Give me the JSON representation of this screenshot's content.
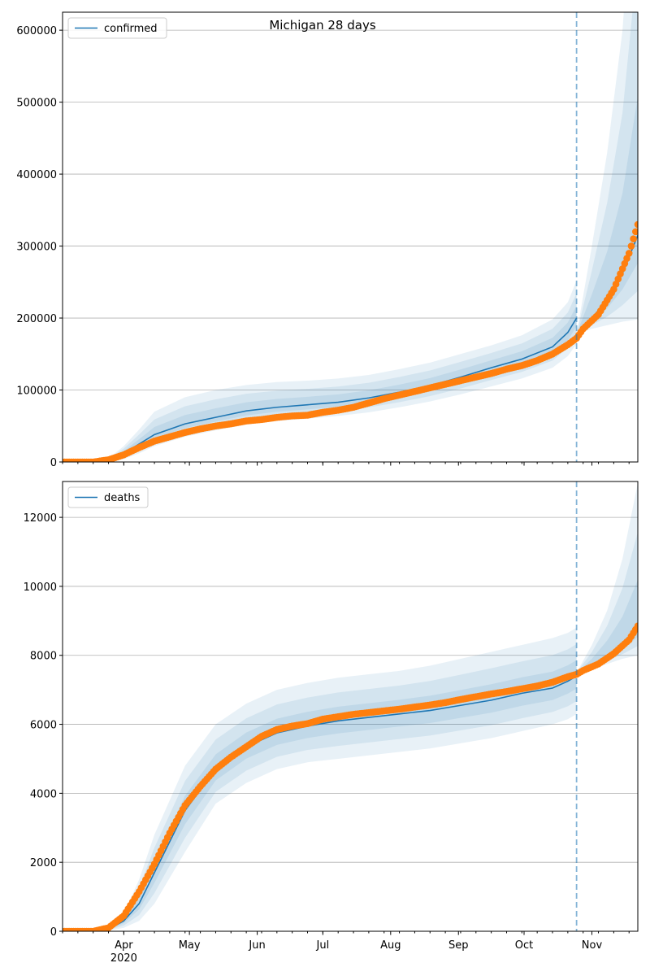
{
  "chart_data": [
    {
      "type": "line",
      "title": "Michigan 28 days",
      "legend": {
        "label": "confirmed",
        "placement": "top-left"
      },
      "xlim": [
        "2020-03-04",
        "2020-11-22"
      ],
      "ylim": [
        0,
        625000
      ],
      "yticks": [
        0,
        100000,
        200000,
        300000,
        400000,
        500000,
        600000
      ],
      "ytick_labels": [
        "0",
        "100000",
        "200000",
        "300000",
        "400000",
        "500000",
        "600000"
      ],
      "grid": true,
      "forecast_start": "2020-10-25",
      "fit": {
        "x": [
          "2020-03-04",
          "2020-03-18",
          "2020-03-25",
          "2020-04-01",
          "2020-04-08",
          "2020-04-15",
          "2020-04-29",
          "2020-05-13",
          "2020-05-27",
          "2020-06-10",
          "2020-06-24",
          "2020-07-08",
          "2020-07-22",
          "2020-08-05",
          "2020-08-19",
          "2020-09-02",
          "2020-09-16",
          "2020-09-30",
          "2020-10-14",
          "2020-10-21",
          "2020-10-25"
        ],
        "median": [
          0,
          0,
          2000,
          12000,
          25000,
          38000,
          53000,
          62000,
          71000,
          76000,
          79500,
          83000,
          89000,
          97000,
          106000,
          118000,
          131000,
          143000,
          160000,
          180000,
          200000
        ],
        "lower": [
          0,
          0,
          0,
          4000,
          12000,
          22000,
          35000,
          44000,
          52000,
          57000,
          60000,
          64000,
          69000,
          76000,
          84000,
          94000,
          105000,
          116000,
          131000,
          147000,
          164000
        ],
        "upper": [
          0,
          0,
          5000,
          22000,
          45000,
          70000,
          90000,
          100000,
          107000,
          111000,
          113000,
          116000,
          121000,
          129000,
          138000,
          150000,
          162000,
          176000,
          198000,
          222000,
          252000
        ]
      },
      "forecast": {
        "x": [
          "2020-10-25",
          "2020-11-01",
          "2020-11-08",
          "2020-11-15",
          "2020-11-22"
        ],
        "median": [
          178000,
          200000,
          225000,
          262000,
          315000
        ],
        "lower": [
          178000,
          185000,
          190000,
          195000,
          198000
        ],
        "upper": [
          178000,
          300000,
          430000,
          600000,
          900000
        ]
      },
      "band_levels": [
        1.0,
        0.66,
        0.33
      ],
      "observed": {
        "x": [
          "2020-03-04",
          "2020-03-18",
          "2020-03-25",
          "2020-04-01",
          "2020-04-08",
          "2020-04-15",
          "2020-04-22",
          "2020-04-29",
          "2020-05-06",
          "2020-05-13",
          "2020-05-20",
          "2020-05-27",
          "2020-06-03",
          "2020-06-10",
          "2020-06-17",
          "2020-06-24",
          "2020-07-01",
          "2020-07-08",
          "2020-07-15",
          "2020-07-22",
          "2020-07-29",
          "2020-08-05",
          "2020-08-12",
          "2020-08-19",
          "2020-08-26",
          "2020-09-02",
          "2020-09-09",
          "2020-09-16",
          "2020-09-23",
          "2020-09-30",
          "2020-10-07",
          "2020-10-14",
          "2020-10-21",
          "2020-10-25",
          "2020-10-28",
          "2020-11-04",
          "2020-11-11",
          "2020-11-18",
          "2020-11-22"
        ],
        "y": [
          0,
          0,
          3000,
          10000,
          20000,
          29000,
          35000,
          41000,
          46000,
          50000,
          53000,
          57000,
          59000,
          62000,
          64000,
          65000,
          69000,
          72000,
          76000,
          82000,
          88000,
          93000,
          98000,
          103000,
          108000,
          113000,
          118000,
          123000,
          129000,
          134000,
          141000,
          150000,
          163000,
          172000,
          185000,
          205000,
          240000,
          290000,
          330000
        ]
      }
    },
    {
      "type": "line",
      "title": "",
      "legend": {
        "label": "deaths",
        "placement": "top-left"
      },
      "xlim": [
        "2020-03-04",
        "2020-11-22"
      ],
      "ylim": [
        0,
        13040
      ],
      "yticks": [
        0,
        2000,
        4000,
        6000,
        8000,
        10000,
        12000
      ],
      "ytick_labels": [
        "0",
        "2000",
        "4000",
        "6000",
        "8000",
        "10000",
        "12000"
      ],
      "xtick_labels": [
        "Apr\n2020",
        "May",
        "Jun",
        "Jul",
        "Aug",
        "Sep",
        "Oct",
        "Nov"
      ],
      "xticks": [
        "2020-04-01",
        "2020-05-01",
        "2020-06-01",
        "2020-07-01",
        "2020-08-01",
        "2020-09-01",
        "2020-10-01",
        "2020-11-01"
      ],
      "grid": true,
      "forecast_start": "2020-10-25",
      "fit": {
        "x": [
          "2020-03-04",
          "2020-03-18",
          "2020-03-25",
          "2020-04-01",
          "2020-04-08",
          "2020-04-15",
          "2020-04-29",
          "2020-05-13",
          "2020-05-27",
          "2020-06-10",
          "2020-06-24",
          "2020-07-08",
          "2020-07-22",
          "2020-08-05",
          "2020-08-19",
          "2020-09-02",
          "2020-09-16",
          "2020-09-30",
          "2020-10-14",
          "2020-10-21",
          "2020-10-25"
        ],
        "median": [
          0,
          0,
          60,
          300,
          800,
          1700,
          3500,
          4700,
          5350,
          5750,
          5950,
          6100,
          6200,
          6300,
          6400,
          6550,
          6700,
          6900,
          7050,
          7250,
          7400
        ],
        "lower": [
          0,
          0,
          20,
          100,
          300,
          800,
          2300,
          3700,
          4300,
          4700,
          4900,
          5000,
          5100,
          5200,
          5300,
          5450,
          5600,
          5800,
          6000,
          6150,
          6300
        ],
        "upper": [
          0,
          0,
          150,
          500,
          1500,
          2800,
          4800,
          6000,
          6600,
          7000,
          7200,
          7350,
          7450,
          7550,
          7700,
          7900,
          8100,
          8300,
          8500,
          8650,
          8800
        ]
      },
      "forecast": {
        "x": [
          "2020-10-25",
          "2020-11-01",
          "2020-11-08",
          "2020-11-15",
          "2020-11-22"
        ],
        "median": [
          7500,
          7700,
          8000,
          8300,
          8800
        ],
        "lower": [
          7500,
          7600,
          7750,
          7900,
          8000
        ],
        "upper": [
          7500,
          8300,
          9300,
          10800,
          13000
        ]
      },
      "band_levels": [
        1.0,
        0.66,
        0.33
      ],
      "observed": {
        "x": [
          "2020-03-04",
          "2020-03-18",
          "2020-03-25",
          "2020-04-01",
          "2020-04-08",
          "2020-04-15",
          "2020-04-22",
          "2020-04-29",
          "2020-05-06",
          "2020-05-13",
          "2020-05-20",
          "2020-05-27",
          "2020-06-03",
          "2020-06-10",
          "2020-06-17",
          "2020-06-24",
          "2020-07-01",
          "2020-07-08",
          "2020-07-15",
          "2020-07-22",
          "2020-07-29",
          "2020-08-05",
          "2020-08-12",
          "2020-08-19",
          "2020-08-26",
          "2020-09-02",
          "2020-09-09",
          "2020-09-16",
          "2020-09-23",
          "2020-09-30",
          "2020-10-07",
          "2020-10-14",
          "2020-10-21",
          "2020-10-25",
          "2020-10-28",
          "2020-11-04",
          "2020-11-11",
          "2020-11-18",
          "2020-11-22"
        ],
        "y": [
          0,
          0,
          100,
          450,
          1150,
          1950,
          2850,
          3650,
          4200,
          4700,
          5050,
          5350,
          5650,
          5850,
          5950,
          6020,
          6150,
          6220,
          6290,
          6340,
          6390,
          6440,
          6500,
          6560,
          6630,
          6720,
          6800,
          6880,
          6950,
          7030,
          7110,
          7220,
          7380,
          7450,
          7560,
          7750,
          8050,
          8450,
          8850
        ]
      }
    }
  ],
  "colors": {
    "median": "#1f77b4",
    "band": "#1f77b4",
    "observed": "#ff7f0e",
    "grid": "#b0b0b0"
  }
}
